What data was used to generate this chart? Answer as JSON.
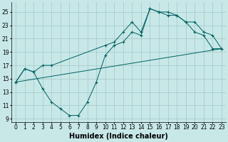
{
  "xlabel": "Humidex (Indice chaleur)",
  "background_color": "#c8e8e8",
  "grid_color": "#a8cccc",
  "line_color": "#006060",
  "xlim": [
    -0.5,
    23.5
  ],
  "ylim": [
    8.5,
    26.5
  ],
  "xticks": [
    0,
    1,
    2,
    3,
    4,
    5,
    6,
    7,
    8,
    9,
    10,
    11,
    12,
    13,
    14,
    15,
    16,
    17,
    18,
    19,
    20,
    21,
    22,
    23
  ],
  "yticks": [
    9,
    11,
    13,
    15,
    17,
    19,
    21,
    23,
    25
  ],
  "line1_x": [
    0,
    1,
    2,
    3,
    4,
    5,
    6,
    7,
    8,
    9,
    10,
    11,
    12,
    13,
    14,
    15,
    16,
    17,
    18,
    19,
    20,
    21,
    22,
    23
  ],
  "line1_y": [
    14.5,
    16.5,
    16.0,
    13.5,
    11.5,
    10.5,
    9.5,
    9.5,
    11.5,
    14.5,
    18.5,
    20.0,
    20.5,
    22.0,
    21.5,
    25.5,
    25.0,
    25.0,
    24.5,
    23.5,
    22.0,
    21.5,
    19.5,
    19.5
  ],
  "line2_x": [
    0,
    1,
    2,
    3,
    4,
    10,
    11,
    12,
    13,
    14,
    15,
    16,
    17,
    18,
    19,
    20,
    21,
    22,
    23
  ],
  "line2_y": [
    14.5,
    16.5,
    16.0,
    17.0,
    17.0,
    20.0,
    20.5,
    22.0,
    23.5,
    22.0,
    25.5,
    25.0,
    24.5,
    24.5,
    23.5,
    23.5,
    22.0,
    21.5,
    19.5
  ],
  "line3_x": [
    0,
    23
  ],
  "line3_y": [
    14.5,
    19.5
  ],
  "fontsize_xlabel": 7,
  "fontsize_ticks": 5.5
}
